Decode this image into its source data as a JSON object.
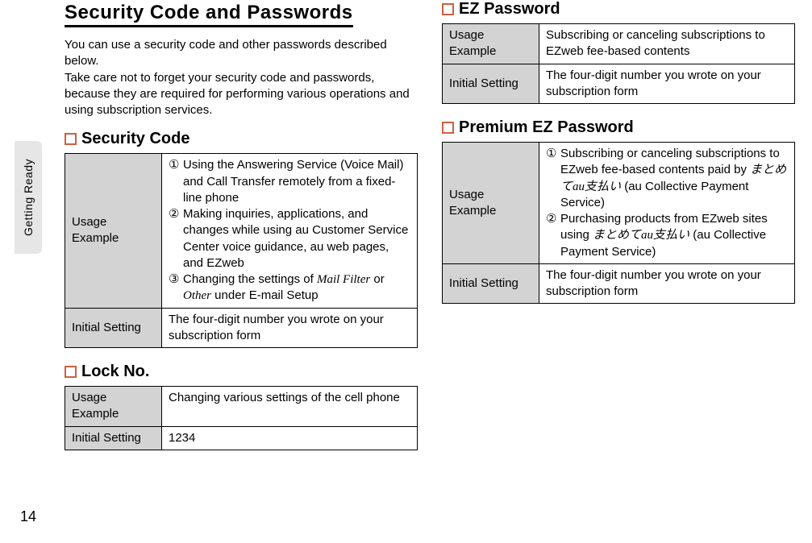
{
  "sideTab": "Getting Ready",
  "pageNumber": "14",
  "mainTitle": "Security Code and Passwords",
  "intro1": "You can use a security code and other passwords described below.",
  "intro2": "Take care not to forget your security code and passwords, because they are required for performing various operations and using subscription services.",
  "labels": {
    "usageExample": "Usage Example",
    "initialSetting": "Initial Setting"
  },
  "securityCode": {
    "heading": "Security Code",
    "usage1n": "①",
    "usage1": "Using the Answering Service (Voice Mail) and Call Transfer remotely from a fixed-line phone",
    "usage2n": "②",
    "usage2": "Making inquiries, applications, and changes while using au Customer Service Center voice guidance, au web pages, and EZweb",
    "usage3n": "③",
    "usage3a": "Changing the settings of ",
    "usage3b": "Mail Filter",
    "usage3c": " or ",
    "usage3d": "Other",
    "usage3e": " under E-mail Setup",
    "initial": "The four-digit number you wrote on your subscription form"
  },
  "lockNo": {
    "heading": "Lock No.",
    "usage": "Changing various settings of the cell phone",
    "initial": "1234"
  },
  "ezPassword": {
    "heading": "EZ Password",
    "usage": "Subscribing or canceling subscriptions to EZweb fee-based contents",
    "initial": "The four-digit number you wrote on your subscription form"
  },
  "premiumEz": {
    "heading": "Premium EZ Password",
    "usage1n": "①",
    "usage1a": "Subscribing or canceling subscriptions to EZweb fee-based contents paid by ",
    "usage1b": "まとめて",
    "usage1c": "au",
    "usage1d": "支払い",
    "usage1e": " (au Collective Payment Service)",
    "usage2n": "②",
    "usage2a": "Purchasing products from EZweb sites using ",
    "usage2b": "まとめて",
    "usage2c": "au",
    "usage2d": "支払い",
    "usage2e": " (au Collective Payment Service)",
    "initial": "The four-digit number you wrote on your subscription form"
  }
}
